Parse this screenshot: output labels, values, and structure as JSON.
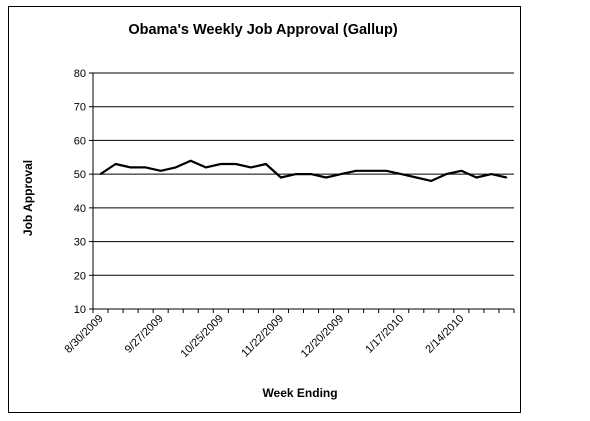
{
  "chart_data": {
    "type": "line",
    "title": "Obama's Weekly Job Approval (Gallup)",
    "xlabel": "Week Ending",
    "ylabel": "Job Approval",
    "ylim": [
      10,
      80
    ],
    "yticks": [
      10,
      20,
      30,
      40,
      50,
      60,
      70,
      80
    ],
    "grid": "horizontal",
    "legend": "none",
    "tick_labels": [
      "8/30/2009",
      "9/27/2009",
      "10/25/2009",
      "11/22/2009",
      "12/20/2009",
      "1/17/2010",
      "2/14/2010"
    ],
    "series": [
      {
        "values": [
          50,
          53,
          52,
          52,
          51,
          52,
          54,
          52,
          53,
          53,
          52,
          53,
          49,
          50,
          50,
          49,
          50,
          51,
          51,
          51,
          50,
          49,
          48,
          50,
          51,
          49,
          50,
          49
        ],
        "color": "#000000"
      }
    ]
  }
}
